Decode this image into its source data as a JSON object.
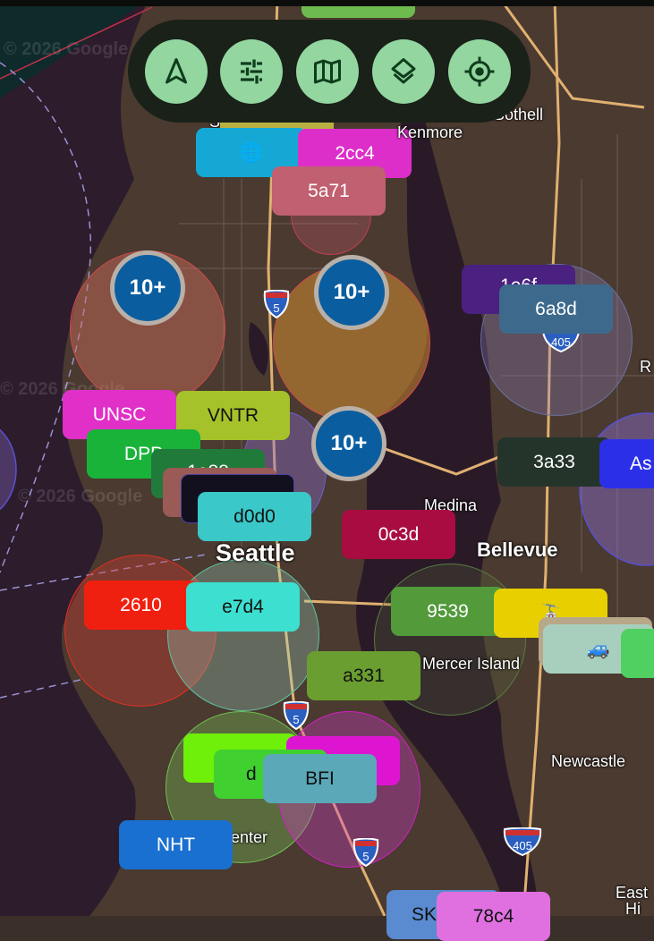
{
  "toolbar": {
    "buttons": [
      {
        "icon": "navigation-arrow-icon",
        "label": "Navigate"
      },
      {
        "icon": "sliders-icon",
        "label": "Filters"
      },
      {
        "icon": "map-icon",
        "label": "Map type"
      },
      {
        "icon": "layers-icon",
        "label": "Layers"
      },
      {
        "icon": "my-location-icon",
        "label": "My location"
      }
    ],
    "colors": {
      "background": "#1a2119",
      "button": "#93d6a0",
      "icon": "#0f3d1c"
    }
  },
  "map": {
    "watermark": "© 2026 Google",
    "places": {
      "kenmore": "Kenmore",
      "bothell": "Bothell",
      "medina": "Medina",
      "seattle": "Seattle",
      "bellevue": "Bellevue",
      "mercer_island": "Mercer Island",
      "newcastle": "Newcastle",
      "center": "enter",
      "east": "East",
      "hi": "Hi",
      "r": "R",
      "s": "S"
    },
    "shields": {
      "i5": "5",
      "i405": "405"
    }
  },
  "clusters": [
    {
      "label": "10+"
    },
    {
      "label": "10+"
    },
    {
      "label": "10+"
    }
  ],
  "markers": [
    {
      "label": "",
      "color": "#6dbb4f"
    },
    {
      "label": "",
      "color": "#b8b040"
    },
    {
      "label": "",
      "icon": "globe-icon",
      "color": "#15a8d4"
    },
    {
      "label": "2cc4",
      "color": "#dd2ec9"
    },
    {
      "label": "5a71",
      "color": "#c06070"
    },
    {
      "label": "1e6f",
      "color": "#4a2080"
    },
    {
      "label": "6a8d",
      "color": "#3d6a8c"
    },
    {
      "label": "UNSC",
      "color": "#e030c8"
    },
    {
      "label": "VNTR",
      "color": "#a5c22a"
    },
    {
      "label": "DPP",
      "color": "#1ab33a"
    },
    {
      "label": "1e88",
      "color": "#207a3a"
    },
    {
      "label": "",
      "color": "#9a5a55"
    },
    {
      "label": "",
      "color": "#12101f"
    },
    {
      "label": "d0d0",
      "color": "#3ac8c8"
    },
    {
      "label": "3a33",
      "color": "#24342a"
    },
    {
      "label": "As",
      "color": "#2b30e8"
    },
    {
      "label": "0c3d",
      "color": "#a80c40"
    },
    {
      "label": "2610",
      "color": "#f02010"
    },
    {
      "label": "e7d4",
      "color": "#3de0d0"
    },
    {
      "label": "9539",
      "color": "#529a3a"
    },
    {
      "label": "",
      "icon": "tram-icon",
      "color": "#e8d000"
    },
    {
      "label": "",
      "color": "#b8a88a"
    },
    {
      "label": "",
      "icon": "car-icon",
      "color": "#a8cfbe"
    },
    {
      "label": "",
      "color": "#50d060"
    },
    {
      "label": "a331",
      "color": "#6a9e30"
    },
    {
      "label": "",
      "color": "#6ef00a"
    },
    {
      "label": "",
      "color": "#dd15d0"
    },
    {
      "label": "d",
      "color": "#40d030"
    },
    {
      "label": "BFI",
      "color": "#5aa8b8"
    },
    {
      "label": "NHT",
      "color": "#1a70d0"
    },
    {
      "label": "SK",
      "color": "#5a8ad0"
    },
    {
      "label": "78c4",
      "color": "#e070e0"
    }
  ]
}
